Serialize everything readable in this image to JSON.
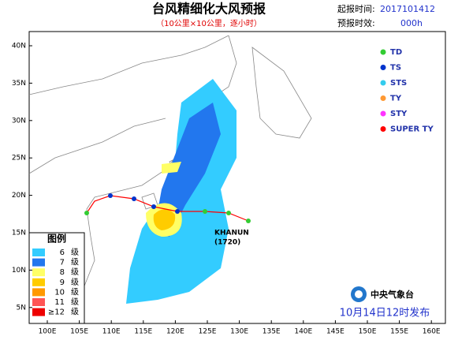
{
  "header": {
    "title": "台风精细化大风预报",
    "subtitle": "（10公里×10公里，逐小时）",
    "start_label": "起报时间:",
    "start_value": "2017101412",
    "lead_label": "预报时效:",
    "lead_value": "000h"
  },
  "map": {
    "lat_labels": [
      "40N",
      "35N",
      "30N",
      "25N",
      "20N",
      "15N",
      "10N",
      "5N"
    ],
    "lon_labels": [
      "100E",
      "105E",
      "110E",
      "115E",
      "120E",
      "125E",
      "130E",
      "135E",
      "140E",
      "145E",
      "150E",
      "155E",
      "160E"
    ],
    "typhoon": {
      "name": "KHANUN",
      "code": "(1720)"
    }
  },
  "intensity_legend": [
    {
      "label": "TD",
      "color": "#33cc33"
    },
    {
      "label": "TS",
      "color": "#0033cc"
    },
    {
      "label": "STS",
      "color": "#33ccee"
    },
    {
      "label": "TY",
      "color": "#ff9933"
    },
    {
      "label": "STY",
      "color": "#ff33ff"
    },
    {
      "label": "SUPER TY",
      "color": "#ff0000"
    }
  ],
  "wind_legend": {
    "title": "图例",
    "items": [
      {
        "level": "6",
        "unit": "级",
        "color": "#33ccff"
      },
      {
        "level": "7",
        "unit": "级",
        "color": "#2277ee"
      },
      {
        "level": "8",
        "unit": "级",
        "color": "#ffff66"
      },
      {
        "level": "9",
        "unit": "级",
        "color": "#ffcc00"
      },
      {
        "level": "10",
        "unit": "级",
        "color": "#ff9900"
      },
      {
        "level": "11",
        "unit": "级",
        "color": "#ff5555"
      },
      {
        "level": "≥12",
        "unit": "级",
        "color": "#ee0000"
      }
    ]
  },
  "footer": {
    "agency": "中央气象台",
    "issued": "10月14日12时发布"
  }
}
